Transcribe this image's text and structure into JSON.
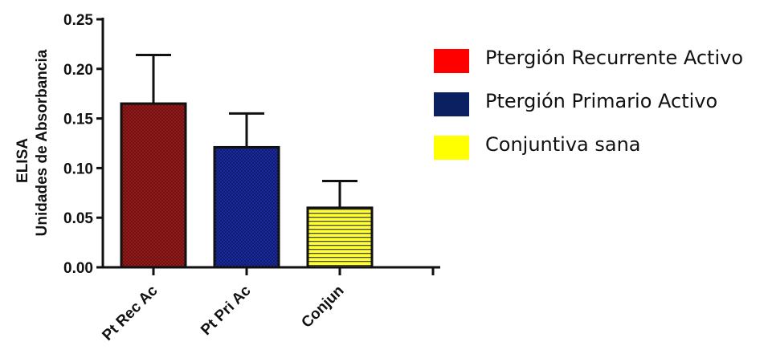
{
  "chart_data": {
    "type": "bar",
    "categories": [
      "Pt Rec Ac",
      "Pt Pri Ac",
      "Conjun",
      ""
    ],
    "values": [
      0.165,
      0.121,
      0.06,
      null
    ],
    "errors": [
      0.049,
      0.034,
      0.027,
      null
    ],
    "colors": [
      "#9e1b1b",
      "#101c8a",
      "#ffff33",
      ""
    ],
    "patterns": [
      "cross-hatch",
      "dots",
      "horizontal-lines",
      ""
    ],
    "ylabel_line1": "ELISA",
    "ylabel_line2": "Unidades de Absorbancia",
    "xlabel": "",
    "ylim": [
      0,
      0.25
    ],
    "yticks": [
      0.0,
      0.05,
      0.1,
      0.15,
      0.2,
      0.25
    ],
    "ytick_labels": [
      "0.00",
      "0.05",
      "0.10",
      "0.15",
      "0.20",
      "0.25"
    ],
    "legend": {
      "position": "right",
      "entries": [
        {
          "label": "Ptergión Recurrente Activo",
          "color": "#ff0000"
        },
        {
          "label": "Ptergión Primario Activo",
          "color": "#0a2060"
        },
        {
          "label": "Conjuntiva sana",
          "color": "#ffff00"
        }
      ]
    }
  }
}
